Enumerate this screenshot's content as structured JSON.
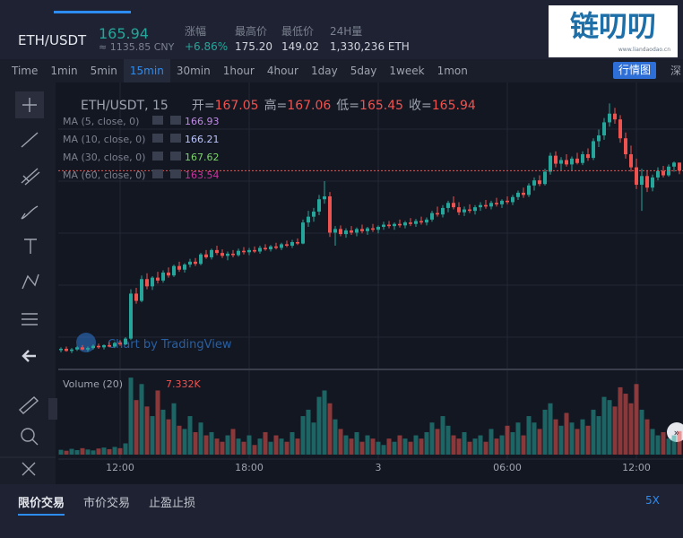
{
  "header": {
    "symbol": "ETH/USDT",
    "price": "165.94",
    "cny": "≈ 1135.85 CNY",
    "stats": [
      {
        "label": "涨幅",
        "value": "+6.86%"
      },
      {
        "label": "最高价",
        "value": "175.20"
      },
      {
        "label": "最低价",
        "value": "149.02"
      },
      {
        "label": "24H量",
        "value": "1,330,236 ETH"
      }
    ],
    "logo": "链叨叨",
    "logo_url": "www.liandaodao.cn"
  },
  "toolbar": {
    "intervals": [
      "Time",
      "1min",
      "5min",
      "15min",
      "30min",
      "1hour",
      "4hour",
      "1day",
      "5day",
      "1week",
      "1mon"
    ],
    "active": "15min",
    "view_button": "行情图",
    "depth_button": "深"
  },
  "legend": {
    "title": "ETH/USDT, 15",
    "open_label": "开=",
    "open": "167.05",
    "high_label": "高=",
    "high": "167.06",
    "low_label": "低=",
    "low": "165.45",
    "close_label": "收=",
    "close": "165.94",
    "ma": [
      {
        "name": "MA (5, close, 0)",
        "value": "166.93",
        "color": "#c08be8"
      },
      {
        "name": "MA (10, close, 0)",
        "value": "166.21",
        "color": "#b9c4ff"
      },
      {
        "name": "MA (30, close, 0)",
        "value": "167.62",
        "color": "#7bd36b"
      },
      {
        "name": "MA (60, close, 0)",
        "value": "163.54",
        "color": "#c6359b"
      }
    ],
    "volume": "Volume (20)",
    "volume_value": "7.332K",
    "watermark": "Chart by TradingView"
  },
  "chart_data": {
    "type": "candlestick",
    "up_color": "#26a69a",
    "down_color": "#ef5350",
    "ylim": [
      138.8,
      177.1
    ],
    "volume_ylim": [
      0,
      26
    ],
    "current_price": 165.94,
    "xticks": [
      {
        "value": 11,
        "label": "12:00"
      },
      {
        "value": 35,
        "label": "18:00"
      },
      {
        "value": 59,
        "label": "3"
      },
      {
        "value": 83,
        "label": "06:00"
      },
      {
        "value": 107,
        "label": "12:00"
      }
    ],
    "candles": [
      [
        141.2,
        141.6,
        140.9,
        141.4
      ],
      [
        141.4,
        141.7,
        141.0,
        141.1
      ],
      [
        141.1,
        141.5,
        140.8,
        141.3
      ],
      [
        141.3,
        141.8,
        141.1,
        141.6
      ],
      [
        141.6,
        141.9,
        141.2,
        141.3
      ],
      [
        141.3,
        141.7,
        141.0,
        141.5
      ],
      [
        141.5,
        142.0,
        141.3,
        141.8
      ],
      [
        141.8,
        142.1,
        141.4,
        141.6
      ],
      [
        141.6,
        142.0,
        141.3,
        141.9
      ],
      [
        141.9,
        142.3,
        141.6,
        141.7
      ],
      [
        141.7,
        142.4,
        141.5,
        142.2
      ],
      [
        142.2,
        142.6,
        141.8,
        142.0
      ],
      [
        142.0,
        143.0,
        141.9,
        142.8
      ],
      [
        142.8,
        149.6,
        142.6,
        149.0
      ],
      [
        149.0,
        149.8,
        147.6,
        148.0
      ],
      [
        148.0,
        151.5,
        147.8,
        151.0
      ],
      [
        151.0,
        151.8,
        149.6,
        150.0
      ],
      [
        150.0,
        151.4,
        149.5,
        151.2
      ],
      [
        151.2,
        152.0,
        150.4,
        150.8
      ],
      [
        150.8,
        152.2,
        150.5,
        151.9
      ],
      [
        151.9,
        152.6,
        151.2,
        151.5
      ],
      [
        151.5,
        153.0,
        151.3,
        152.8
      ],
      [
        152.8,
        153.4,
        152.0,
        152.3
      ],
      [
        152.3,
        153.2,
        151.9,
        153.0
      ],
      [
        153.0,
        153.8,
        152.6,
        153.4
      ],
      [
        153.4,
        153.9,
        152.8,
        153.1
      ],
      [
        153.1,
        154.6,
        152.9,
        154.4
      ],
      [
        154.4,
        155.0,
        153.8,
        154.0
      ],
      [
        154.0,
        155.2,
        153.7,
        155.0
      ],
      [
        155.0,
        155.6,
        154.3,
        154.6
      ],
      [
        154.6,
        155.1,
        153.9,
        154.2
      ],
      [
        154.2,
        154.8,
        153.6,
        154.5
      ],
      [
        154.5,
        155.0,
        154.0,
        154.3
      ],
      [
        154.3,
        155.2,
        154.1,
        154.9
      ],
      [
        154.9,
        155.4,
        154.4,
        154.7
      ],
      [
        154.7,
        155.3,
        154.3,
        155.0
      ],
      [
        155.0,
        155.5,
        154.6,
        154.8
      ],
      [
        154.8,
        155.6,
        154.5,
        155.3
      ],
      [
        155.3,
        155.8,
        154.9,
        155.1
      ],
      [
        155.1,
        155.7,
        154.8,
        155.5
      ],
      [
        155.5,
        156.0,
        155.1,
        155.3
      ],
      [
        155.3,
        156.0,
        155.0,
        155.8
      ],
      [
        155.8,
        156.3,
        155.4,
        155.6
      ],
      [
        155.6,
        156.4,
        155.3,
        156.1
      ],
      [
        156.1,
        156.6,
        155.7,
        155.9
      ],
      [
        155.9,
        159.2,
        155.8,
        158.8
      ],
      [
        158.8,
        160.4,
        158.2,
        159.6
      ],
      [
        159.6,
        160.8,
        158.9,
        160.3
      ],
      [
        160.3,
        162.6,
        159.8,
        162.0
      ],
      [
        162.0,
        164.5,
        161.4,
        162.4
      ],
      [
        162.4,
        163.0,
        156.8,
        157.4
      ],
      [
        157.4,
        158.3,
        155.6,
        157.9
      ],
      [
        157.9,
        158.4,
        156.9,
        157.2
      ],
      [
        157.2,
        158.0,
        156.7,
        157.7
      ],
      [
        157.7,
        158.3,
        157.1,
        157.4
      ],
      [
        157.4,
        158.1,
        156.9,
        157.9
      ],
      [
        157.9,
        158.5,
        157.3,
        157.6
      ],
      [
        157.6,
        158.2,
        157.1,
        158.0
      ],
      [
        158.0,
        158.6,
        157.5,
        157.8
      ],
      [
        157.8,
        158.4,
        157.3,
        158.2
      ],
      [
        158.2,
        158.9,
        157.8,
        158.5
      ],
      [
        158.5,
        159.0,
        158.0,
        158.3
      ],
      [
        158.3,
        158.8,
        157.8,
        158.6
      ],
      [
        158.6,
        159.2,
        158.1,
        158.4
      ],
      [
        158.4,
        159.0,
        158.0,
        158.8
      ],
      [
        158.8,
        159.4,
        158.3,
        158.6
      ],
      [
        158.6,
        159.3,
        158.2,
        159.0
      ],
      [
        159.0,
        159.6,
        158.5,
        158.8
      ],
      [
        158.8,
        159.5,
        158.4,
        159.2
      ],
      [
        159.2,
        160.4,
        158.9,
        160.1
      ],
      [
        160.1,
        161.0,
        159.6,
        159.9
      ],
      [
        159.9,
        161.2,
        159.5,
        160.8
      ],
      [
        160.8,
        161.8,
        160.2,
        161.5
      ],
      [
        161.5,
        162.4,
        160.6,
        160.9
      ],
      [
        160.9,
        161.6,
        159.8,
        160.2
      ],
      [
        160.2,
        161.0,
        159.7,
        160.6
      ],
      [
        160.6,
        161.3,
        160.1,
        160.4
      ],
      [
        160.4,
        161.2,
        159.9,
        160.9
      ],
      [
        160.9,
        161.6,
        160.4,
        161.2
      ],
      [
        161.2,
        161.9,
        160.7,
        161.0
      ],
      [
        161.0,
        161.8,
        160.6,
        161.5
      ],
      [
        161.5,
        162.2,
        161.0,
        161.3
      ],
      [
        161.3,
        162.0,
        160.8,
        161.8
      ],
      [
        161.8,
        162.4,
        161.3,
        161.6
      ],
      [
        161.6,
        162.6,
        161.2,
        162.3
      ],
      [
        162.3,
        163.2,
        161.9,
        162.9
      ],
      [
        162.9,
        163.6,
        162.2,
        162.6
      ],
      [
        162.6,
        164.2,
        162.3,
        163.9
      ],
      [
        163.9,
        165.0,
        163.2,
        164.6
      ],
      [
        164.6,
        165.3,
        163.8,
        164.1
      ],
      [
        164.1,
        166.2,
        163.9,
        165.8
      ],
      [
        165.8,
        168.4,
        165.4,
        168.0
      ],
      [
        168.0,
        168.6,
        166.4,
        166.9
      ],
      [
        166.9,
        167.8,
        166.0,
        167.4
      ],
      [
        167.4,
        168.2,
        166.5,
        166.8
      ],
      [
        166.8,
        167.9,
        165.9,
        167.6
      ],
      [
        167.6,
        168.4,
        166.8,
        167.0
      ],
      [
        167.0,
        168.6,
        166.7,
        168.2
      ],
      [
        168.2,
        169.0,
        167.3,
        167.7
      ],
      [
        167.7,
        170.4,
        167.4,
        170.0
      ],
      [
        170.0,
        171.6,
        169.2,
        170.8
      ],
      [
        170.8,
        173.2,
        170.2,
        172.6
      ],
      [
        172.6,
        175.2,
        172.0,
        173.8
      ],
      [
        173.8,
        174.6,
        172.4,
        173.0
      ],
      [
        173.0,
        173.6,
        169.8,
        170.4
      ],
      [
        170.4,
        171.2,
        167.6,
        168.2
      ],
      [
        168.2,
        169.4,
        165.8,
        166.4
      ],
      [
        166.4,
        167.6,
        163.4,
        164.0
      ],
      [
        164.0,
        166.2,
        160.4,
        165.2
      ],
      [
        165.2,
        166.0,
        163.0,
        163.6
      ],
      [
        163.6,
        165.4,
        163.1,
        165.0
      ],
      [
        165.0,
        166.4,
        164.6,
        165.9
      ],
      [
        165.9,
        166.6,
        165.0,
        165.3
      ],
      [
        165.3,
        166.8,
        165.1,
        166.5
      ],
      [
        166.5,
        167.2,
        165.8,
        167.05
      ],
      [
        167.05,
        167.06,
        165.45,
        165.94
      ]
    ],
    "volumes": [
      1.5,
      1.2,
      1.8,
      1.4,
      2.0,
      1.6,
      1.3,
      1.9,
      2.2,
      1.7,
      2.4,
      2.0,
      3.5,
      24,
      17,
      22,
      15,
      12,
      20,
      14,
      11,
      16,
      9,
      8,
      12,
      7,
      10,
      6,
      7,
      5,
      4,
      6,
      8,
      5,
      4,
      6,
      3,
      5,
      7,
      4,
      6,
      5,
      4,
      7,
      5,
      12,
      14,
      10,
      18,
      20,
      16,
      11,
      8,
      6,
      5,
      7,
      4,
      6,
      5,
      4,
      3,
      5,
      4,
      6,
      5,
      4,
      6,
      5,
      7,
      10,
      8,
      12,
      9,
      6,
      5,
      7,
      4,
      5,
      6,
      4,
      8,
      5,
      6,
      9,
      7,
      10,
      6,
      12,
      10,
      8,
      14,
      16,
      11,
      9,
      13,
      10,
      8,
      11,
      9,
      14,
      12,
      18,
      17,
      15,
      21,
      19,
      16,
      22,
      14,
      11,
      8,
      6,
      7,
      5,
      6,
      7.332
    ]
  },
  "footer": {
    "tabs": [
      "限价交易",
      "市价交易",
      "止盈止损"
    ],
    "leverage": "5X"
  }
}
